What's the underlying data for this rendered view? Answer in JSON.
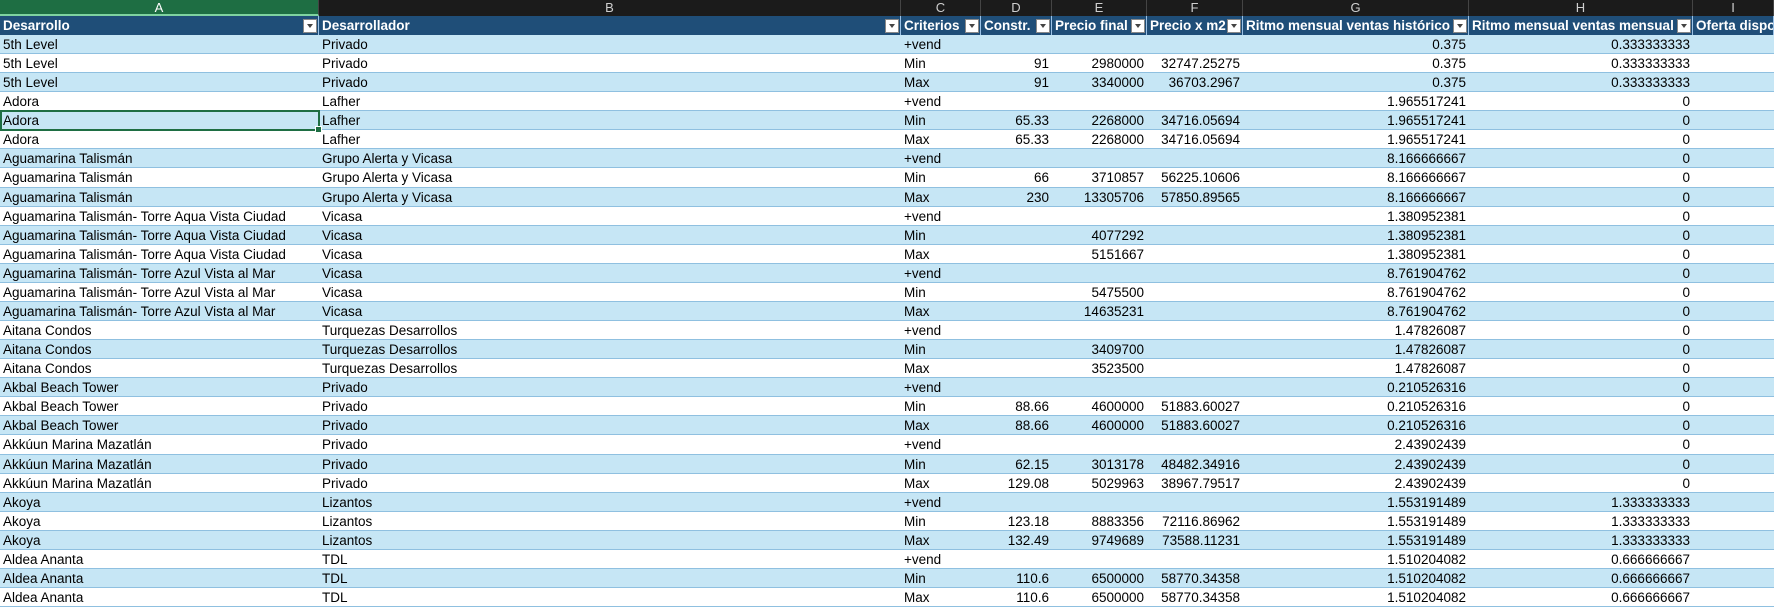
{
  "column_letters": [
    "A",
    "B",
    "C",
    "D",
    "E",
    "F",
    "G",
    "H",
    "I"
  ],
  "table": {
    "header": [
      "Desarrollo",
      "Desarrollador",
      "Criterios",
      "Constr.",
      "Precio final",
      "Precio x m2",
      "Ritmo mensual ventas histórico",
      "Ritmo mensual ventas mensual",
      "Oferta dispo"
    ],
    "rows": [
      [
        "5th Level",
        "Privado",
        "+vend",
        null,
        null,
        null,
        "0.375",
        "0.333333333"
      ],
      [
        "5th Level",
        "Privado",
        "Min",
        "91",
        "2980000",
        "32747.25275",
        "0.375",
        "0.333333333"
      ],
      [
        "5th Level",
        "Privado",
        "Max",
        "91",
        "3340000",
        "36703.2967",
        "0.375",
        "0.333333333"
      ],
      [
        "Adora",
        "Lafher",
        "+vend",
        null,
        null,
        null,
        "1.965517241",
        "0"
      ],
      [
        "Adora",
        "Lafher",
        "Min",
        "65.33",
        "2268000",
        "34716.05694",
        "1.965517241",
        "0"
      ],
      [
        "Adora",
        "Lafher",
        "Max",
        "65.33",
        "2268000",
        "34716.05694",
        "1.965517241",
        "0"
      ],
      [
        "Aguamarina Talismán",
        "Grupo Alerta y Vicasa",
        "+vend",
        null,
        null,
        null,
        "8.166666667",
        "0"
      ],
      [
        "Aguamarina Talismán",
        "Grupo Alerta y Vicasa",
        "Min",
        "66",
        "3710857",
        "56225.10606",
        "8.166666667",
        "0"
      ],
      [
        "Aguamarina Talismán",
        "Grupo Alerta y Vicasa",
        "Max",
        "230",
        "13305706",
        "57850.89565",
        "8.166666667",
        "0"
      ],
      [
        "Aguamarina Talismán- Torre Aqua Vista Ciudad",
        "Vicasa",
        "+vend",
        null,
        null,
        null,
        "1.380952381",
        "0"
      ],
      [
        "Aguamarina Talismán- Torre Aqua Vista Ciudad",
        "Vicasa",
        "Min",
        null,
        "4077292",
        null,
        "1.380952381",
        "0"
      ],
      [
        "Aguamarina Talismán- Torre Aqua Vista Ciudad",
        "Vicasa",
        "Max",
        null,
        "5151667",
        null,
        "1.380952381",
        "0"
      ],
      [
        "Aguamarina Talismán- Torre Azul Vista al Mar",
        "Vicasa",
        "+vend",
        null,
        null,
        null,
        "8.761904762",
        "0"
      ],
      [
        "Aguamarina Talismán- Torre Azul Vista al Mar",
        "Vicasa",
        "Min",
        null,
        "5475500",
        null,
        "8.761904762",
        "0"
      ],
      [
        "Aguamarina Talismán- Torre Azul Vista al Mar",
        "Vicasa",
        "Max",
        null,
        "14635231",
        null,
        "8.761904762",
        "0"
      ],
      [
        "Aitana Condos",
        "Turquezas Desarrollos",
        "+vend",
        null,
        null,
        null,
        "1.47826087",
        "0"
      ],
      [
        "Aitana Condos",
        "Turquezas Desarrollos",
        "Min",
        null,
        "3409700",
        null,
        "1.47826087",
        "0"
      ],
      [
        "Aitana Condos",
        "Turquezas Desarrollos",
        "Max",
        null,
        "3523500",
        null,
        "1.47826087",
        "0"
      ],
      [
        "Akbal Beach Tower",
        "Privado",
        "+vend",
        null,
        null,
        null,
        "0.210526316",
        "0"
      ],
      [
        "Akbal Beach Tower",
        "Privado",
        "Min",
        "88.66",
        "4600000",
        "51883.60027",
        "0.210526316",
        "0"
      ],
      [
        "Akbal Beach Tower",
        "Privado",
        "Max",
        "88.66",
        "4600000",
        "51883.60027",
        "0.210526316",
        "0"
      ],
      [
        "Akkúun Marina Mazatlán",
        "Privado",
        "+vend",
        null,
        null,
        null,
        "2.43902439",
        "0"
      ],
      [
        "Akkúun Marina Mazatlán",
        "Privado",
        "Min",
        "62.15",
        "3013178",
        "48482.34916",
        "2.43902439",
        "0"
      ],
      [
        "Akkúun Marina Mazatlán",
        "Privado",
        "Max",
        "129.08",
        "5029963",
        "38967.79517",
        "2.43902439",
        "0"
      ],
      [
        "Akoya",
        "Lizantos",
        "+vend",
        null,
        null,
        null,
        "1.553191489",
        "1.333333333"
      ],
      [
        "Akoya",
        "Lizantos",
        "Min",
        "123.18",
        "8883356",
        "72116.86962",
        "1.553191489",
        "1.333333333"
      ],
      [
        "Akoya",
        "Lizantos",
        "Max",
        "132.49",
        "9749689",
        "73588.11231",
        "1.553191489",
        "1.333333333"
      ],
      [
        "Aldea Ananta",
        "TDL",
        "+vend",
        null,
        null,
        null,
        "1.510204082",
        "0.666666667"
      ],
      [
        "Aldea Ananta",
        "TDL",
        "Min",
        "110.6",
        "6500000",
        "58770.34358",
        "1.510204082",
        "0.666666667"
      ],
      [
        "Aldea Ananta",
        "TDL",
        "Max",
        "110.6",
        "6500000",
        "58770.34358",
        "1.510204082",
        "0.666666667"
      ]
    ]
  }
}
